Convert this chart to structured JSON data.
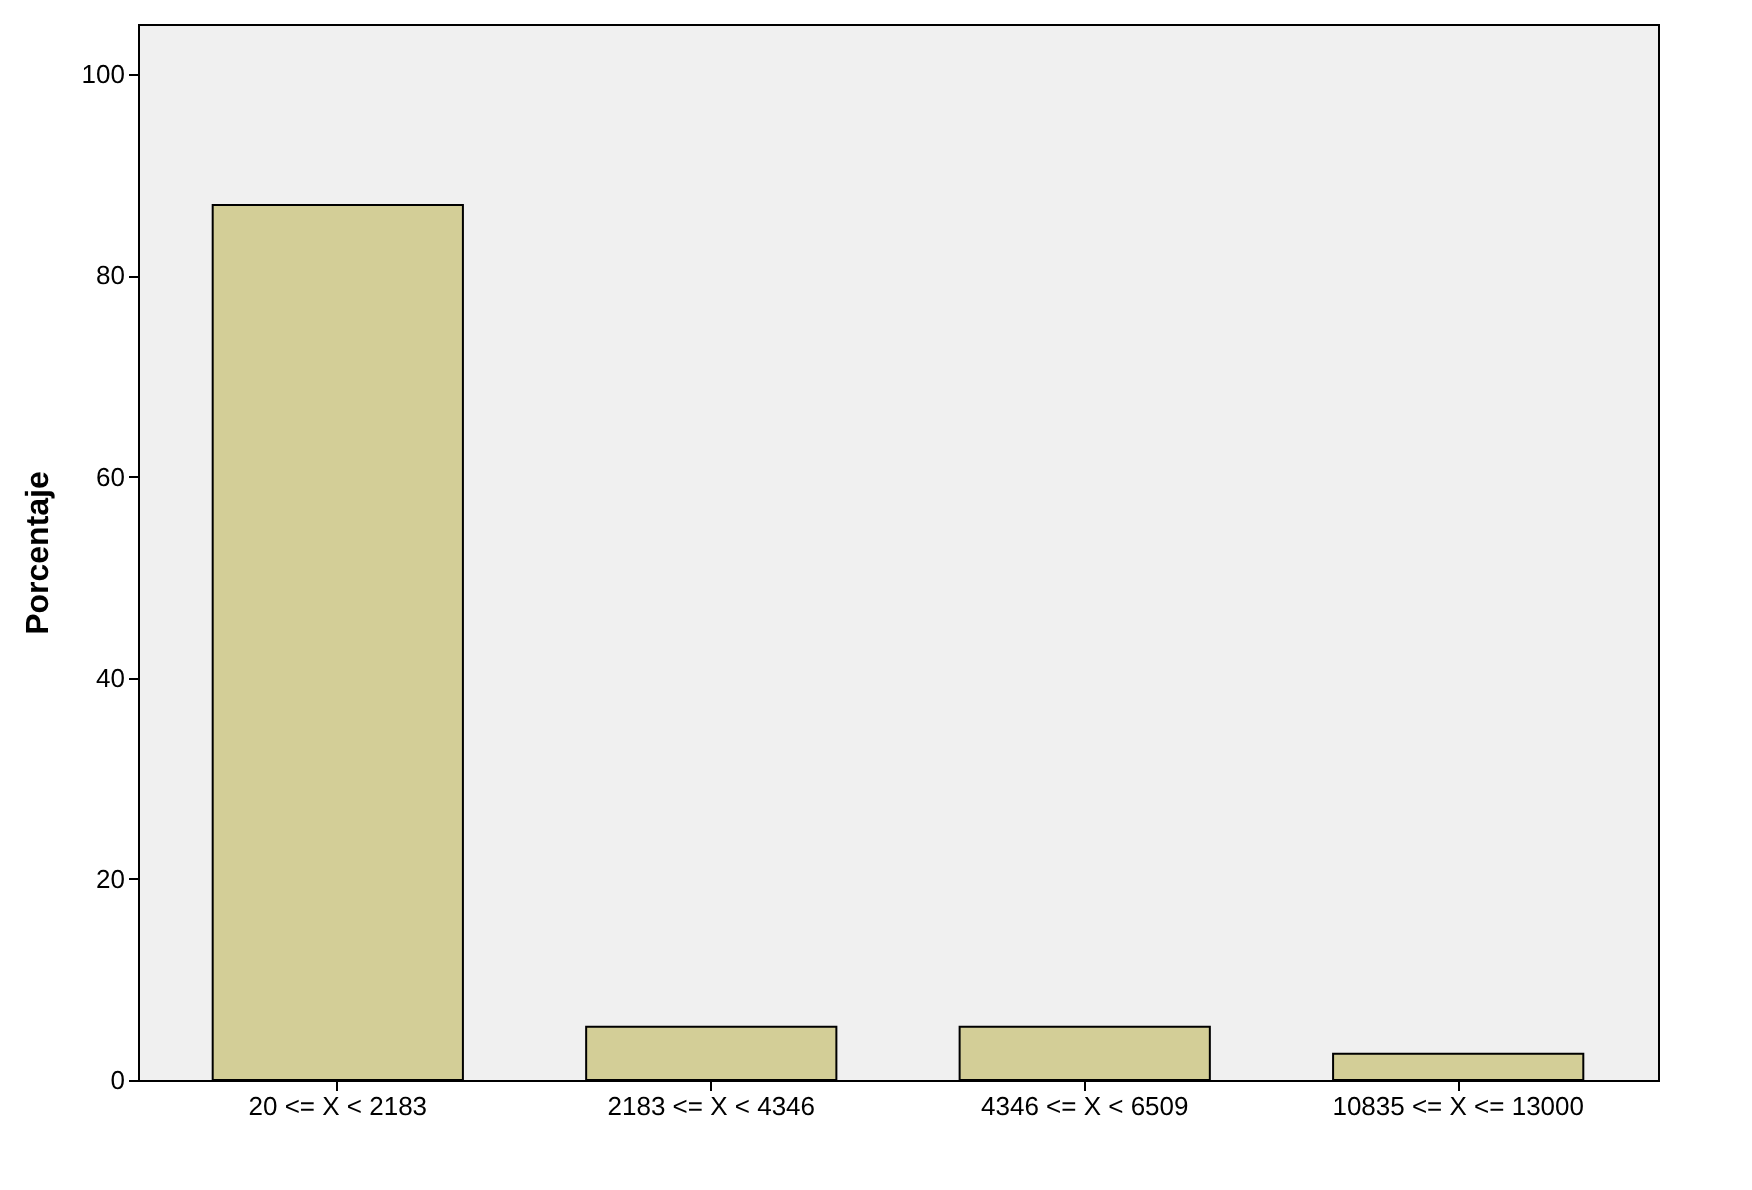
{
  "chart_data": {
    "type": "bar",
    "ylabel": "Porcentaje",
    "categories": [
      "20 <= X < 2183",
      "2183 <= X < 4346",
      "4346 <= X < 6509",
      "10835 <= X <= 13000"
    ],
    "values": [
      87,
      5.3,
      5.3,
      2.6
    ],
    "color": "#d3ce97",
    "ylim": [
      0,
      105
    ],
    "yticks": [
      0,
      20,
      40,
      60,
      80,
      100
    ],
    "grid": false
  }
}
